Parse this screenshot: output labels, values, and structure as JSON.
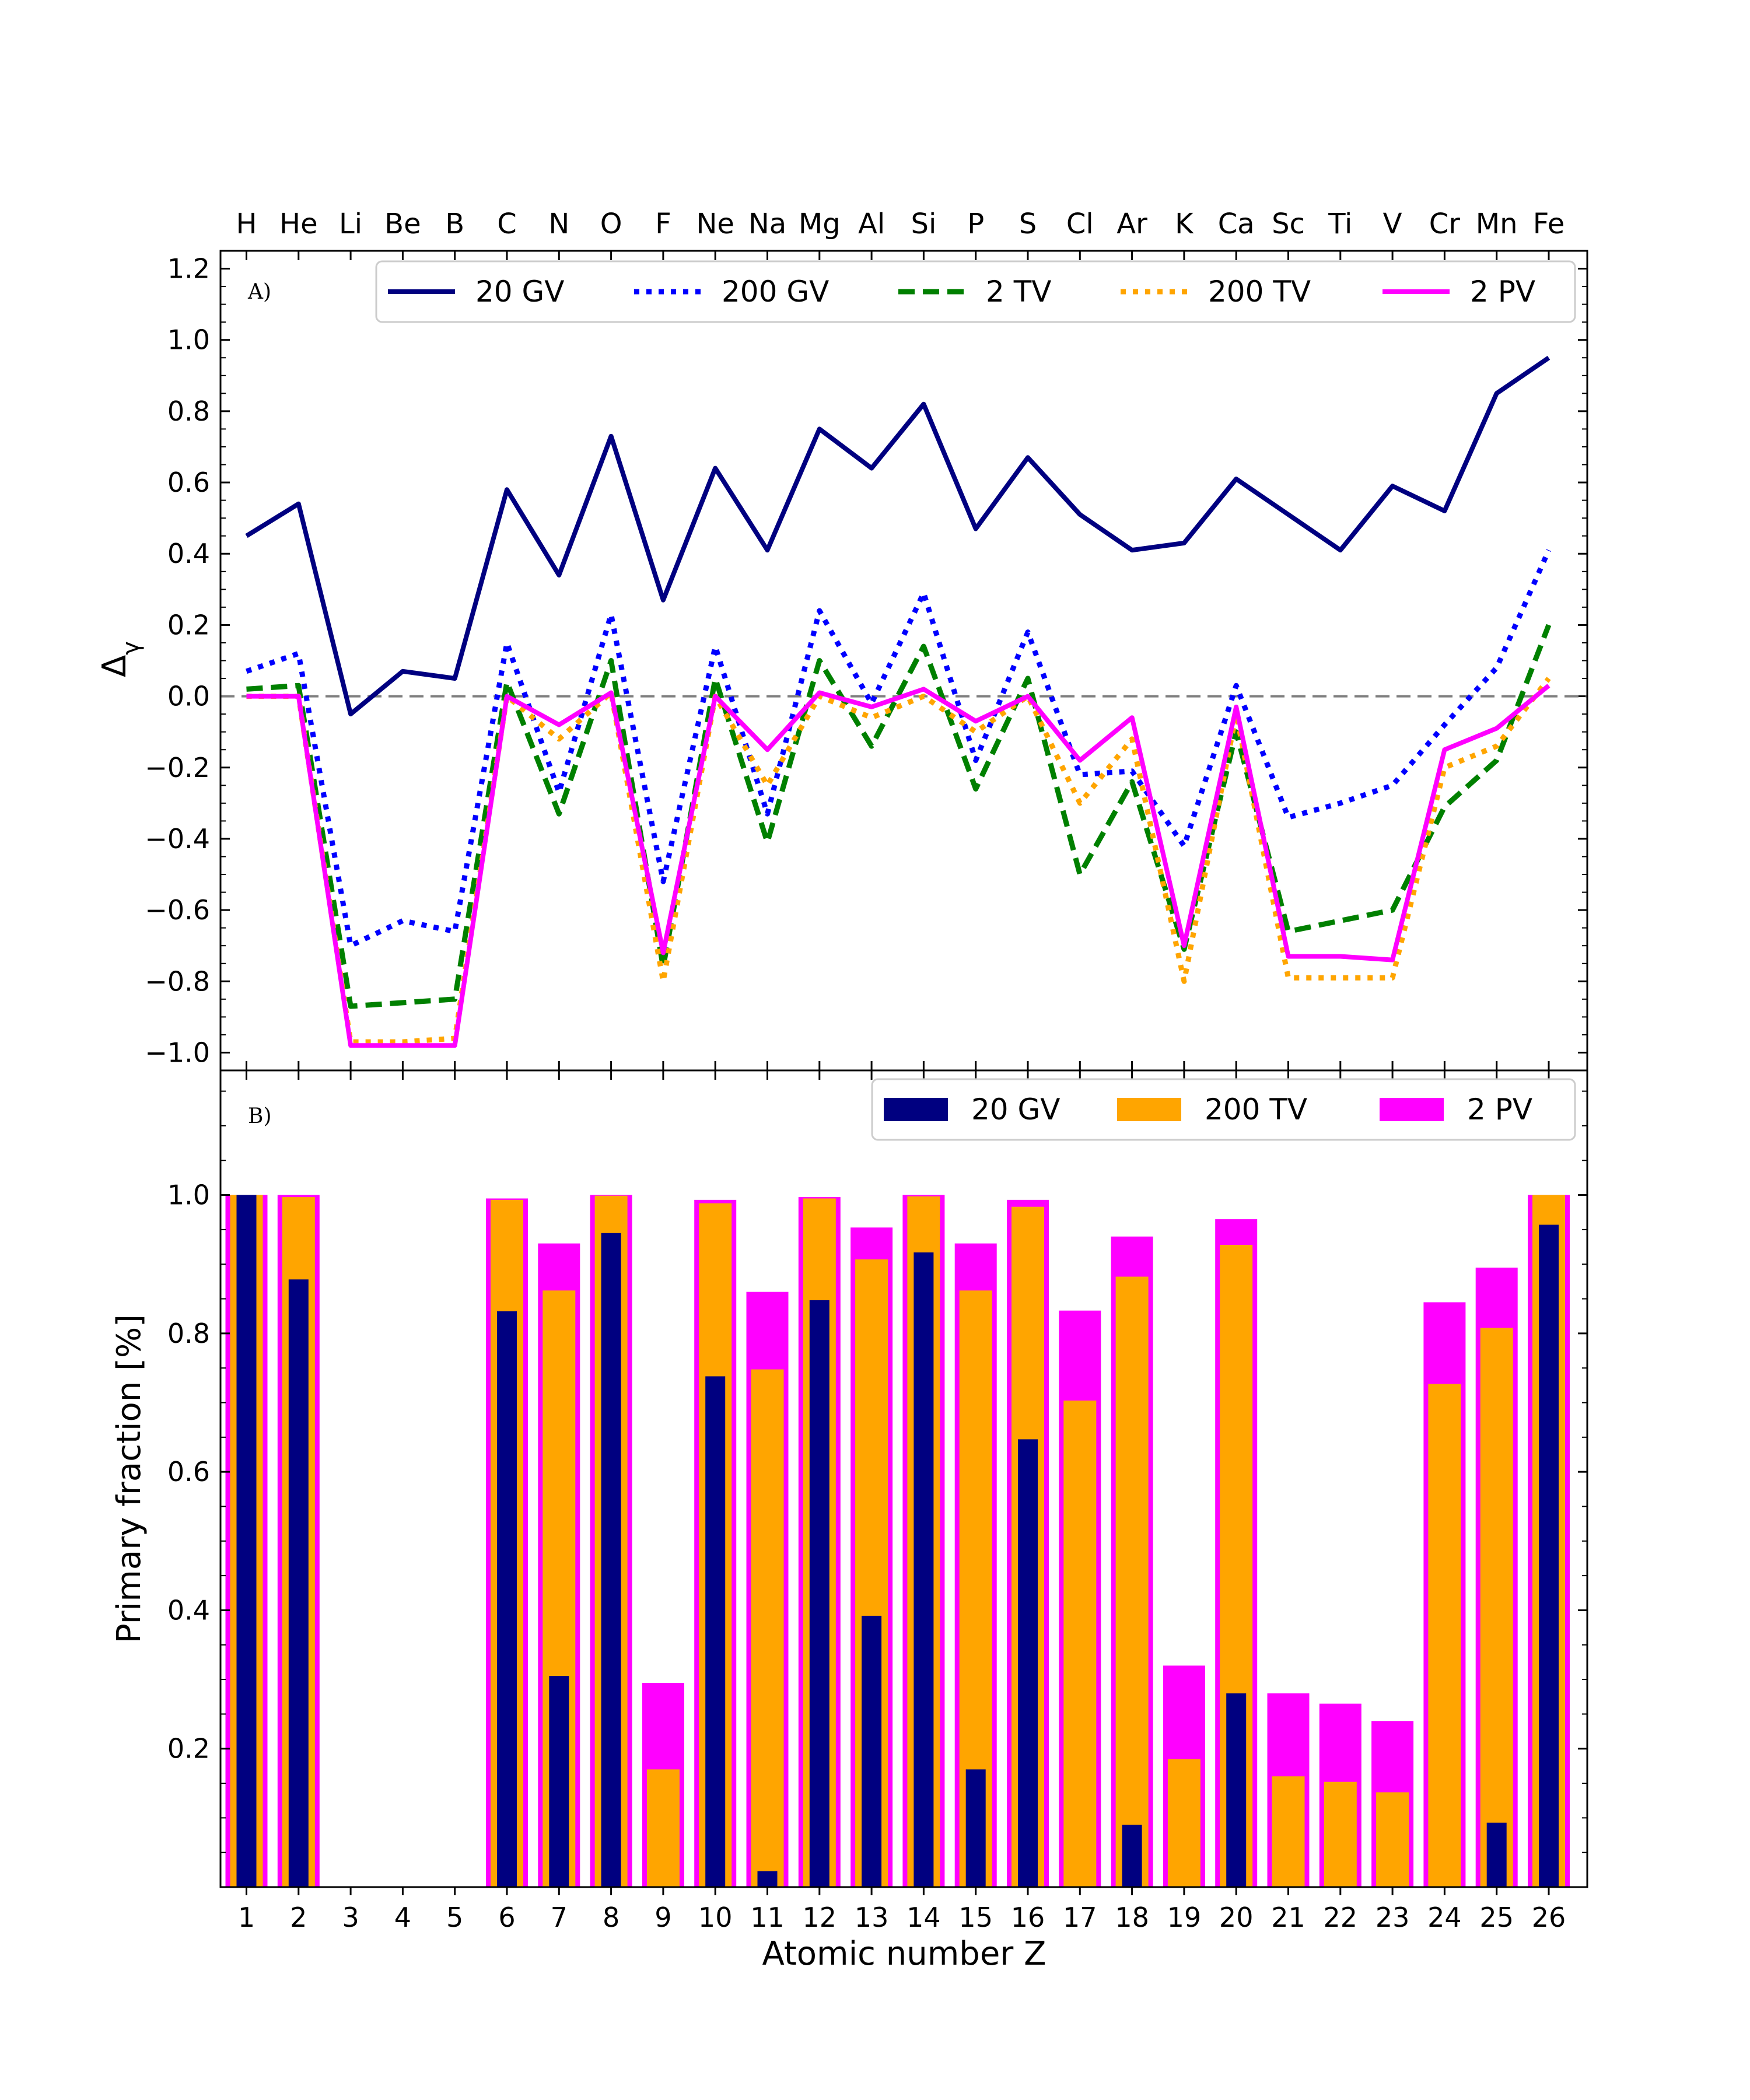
{
  "chart_data": [
    {
      "panel_label": "A)",
      "type": "line",
      "ylabel": "Δ",
      "ylabel_subscript": "γ",
      "ylim": [
        -1.05,
        1.25
      ],
      "yticks": [
        -1.0,
        -0.8,
        -0.6,
        -0.4,
        -0.2,
        0.0,
        0.2,
        0.4,
        0.6,
        0.8,
        1.0,
        1.2
      ],
      "ytick_labels": [
        "−1.0",
        "−0.8",
        "−0.6",
        "−0.4",
        "−0.2",
        "0.0",
        "0.2",
        "0.4",
        "0.6",
        "0.8",
        "1.0",
        "1.2"
      ],
      "x": [
        1,
        2,
        3,
        4,
        5,
        6,
        7,
        8,
        9,
        10,
        11,
        12,
        13,
        14,
        15,
        16,
        17,
        18,
        19,
        20,
        21,
        22,
        23,
        24,
        25,
        26
      ],
      "top_axis_labels": [
        "H",
        "He",
        "Li",
        "Be",
        "B",
        "C",
        "N",
        "O",
        "F",
        "Ne",
        "Na",
        "Mg",
        "Al",
        "Si",
        "P",
        "S",
        "Cl",
        "Ar",
        "K",
        "Ca",
        "Sc",
        "Ti",
        "V",
        "Cr",
        "Mn",
        "Fe"
      ],
      "reference_line": 0.0,
      "legend_position": "top-right",
      "series": [
        {
          "name": "20 GV",
          "color": "#000080",
          "style": "solid",
          "values": [
            0.45,
            0.54,
            -0.05,
            0.07,
            0.05,
            0.58,
            0.34,
            0.73,
            0.27,
            0.64,
            0.41,
            0.75,
            0.64,
            0.82,
            0.47,
            0.67,
            0.51,
            0.41,
            0.43,
            0.61,
            0.51,
            0.41,
            0.59,
            0.52,
            0.85,
            0.95
          ]
        },
        {
          "name": "200 GV",
          "color": "#0000ff",
          "style": "dotted",
          "values": [
            0.07,
            0.12,
            -0.7,
            -0.63,
            -0.66,
            0.15,
            -0.27,
            0.23,
            -0.52,
            0.14,
            -0.33,
            0.24,
            -0.02,
            0.29,
            -0.18,
            0.18,
            -0.22,
            -0.21,
            -0.42,
            0.03,
            -0.34,
            -0.3,
            -0.25,
            -0.08,
            0.08,
            0.41
          ]
        },
        {
          "name": "2 TV",
          "color": "#008000",
          "style": "dashed",
          "values": [
            0.02,
            0.03,
            -0.87,
            -0.86,
            -0.85,
            0.04,
            -0.33,
            0.1,
            -0.76,
            0.05,
            -0.41,
            0.1,
            -0.14,
            0.14,
            -0.26,
            0.05,
            -0.5,
            -0.24,
            -0.71,
            -0.1,
            -0.66,
            -0.63,
            -0.6,
            -0.31,
            -0.18,
            0.2
          ]
        },
        {
          "name": "200 TV",
          "color": "#ffa500",
          "style": "dotted",
          "values": [
            0.0,
            0.0,
            -0.97,
            -0.97,
            -0.96,
            0.0,
            -0.12,
            0.01,
            -0.8,
            0.0,
            -0.25,
            0.0,
            -0.06,
            0.0,
            -0.1,
            0.0,
            -0.3,
            -0.12,
            -0.8,
            -0.05,
            -0.79,
            -0.79,
            -0.79,
            -0.2,
            -0.14,
            0.05
          ]
        },
        {
          "name": "2 PV",
          "color": "#ff00ff",
          "style": "solid",
          "values": [
            0.0,
            0.0,
            -0.98,
            -0.98,
            -0.98,
            0.0,
            -0.08,
            0.01,
            -0.72,
            0.0,
            -0.15,
            0.01,
            -0.03,
            0.02,
            -0.07,
            0.0,
            -0.18,
            -0.06,
            -0.7,
            -0.03,
            -0.73,
            -0.73,
            -0.74,
            -0.15,
            -0.09,
            0.03
          ]
        }
      ]
    },
    {
      "panel_label": "B)",
      "type": "bar",
      "ylabel": "Primary fraction [%]",
      "xlabel": "Atomic number Z",
      "ylim": [
        0.0,
        1.18
      ],
      "yticks": [
        0.2,
        0.4,
        0.6,
        0.8,
        1.0
      ],
      "ytick_labels": [
        "0.2",
        "0.4",
        "0.6",
        "0.8",
        "1.0"
      ],
      "categories": [
        1,
        2,
        3,
        4,
        5,
        6,
        7,
        8,
        9,
        10,
        11,
        12,
        13,
        14,
        15,
        16,
        17,
        18,
        19,
        20,
        21,
        22,
        23,
        24,
        25,
        26
      ],
      "category_labels": [
        "1",
        "2",
        "3",
        "4",
        "5",
        "6",
        "7",
        "8",
        "9",
        "10",
        "11",
        "12",
        "13",
        "14",
        "15",
        "16",
        "17",
        "18",
        "19",
        "20",
        "21",
        "22",
        "23",
        "24",
        "25",
        "26"
      ],
      "legend_position": "top-right",
      "series": [
        {
          "name": "2 PV",
          "color": "#ff00ff",
          "values": [
            1.0,
            1.0,
            0,
            0,
            0,
            0.995,
            0.93,
            1.0,
            0.295,
            0.993,
            0.86,
            0.997,
            0.953,
            1.0,
            0.93,
            0.993,
            0.833,
            0.94,
            0.32,
            0.965,
            0.28,
            0.265,
            0.24,
            0.845,
            0.895,
            1.0
          ]
        },
        {
          "name": "200 TV",
          "color": "#ffa500",
          "values": [
            1.0,
            0.997,
            0,
            0,
            0,
            0.993,
            0.862,
            0.999,
            0.17,
            0.988,
            0.748,
            0.995,
            0.907,
            0.998,
            0.862,
            0.983,
            0.703,
            0.882,
            0.185,
            0.928,
            0.16,
            0.152,
            0.137,
            0.727,
            0.808,
            1.0
          ]
        },
        {
          "name": "20 GV",
          "color": "#000080",
          "values": [
            1.0,
            0.878,
            0,
            0,
            0,
            0.832,
            0.305,
            0.945,
            0,
            0.738,
            0.023,
            0.848,
            0.392,
            0.917,
            0.17,
            0.647,
            0,
            0.09,
            0,
            0.28,
            0,
            0,
            0,
            0,
            0.093,
            0.957
          ]
        }
      ],
      "legend_order": [
        "20 GV",
        "200 TV",
        "2 PV"
      ]
    }
  ]
}
